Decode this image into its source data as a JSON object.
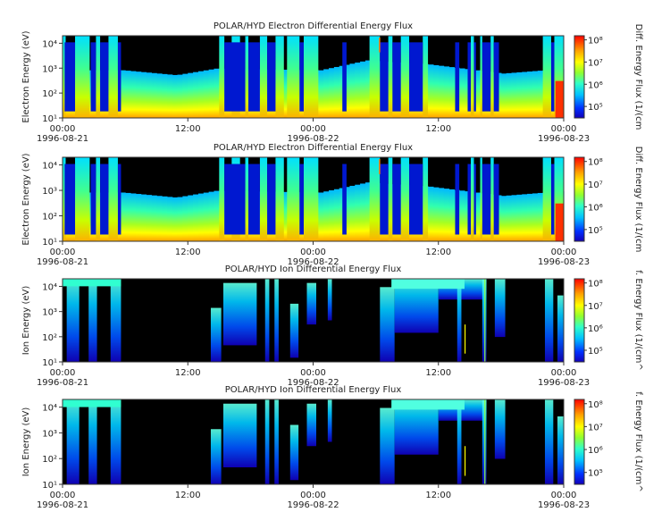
{
  "chart_data": [
    {
      "type": "heatmap",
      "title": "POLAR/HYD  Electron Differential Energy Flux",
      "ylabel": "Electron Energy (eV)",
      "colorbar_label": "Diff. Energy Flux (1/(cm",
      "y_scale": "log",
      "y_ticks": [
        "10¹",
        "10²",
        "10³",
        "10⁴"
      ],
      "y_range_ev": [
        10,
        20000
      ],
      "x_range": [
        "1996-08-21 00:00",
        "1996-08-23 00:00"
      ],
      "x_ticks": [
        "00:00",
        "12:00",
        "00:00",
        "12:00",
        "00:00"
      ],
      "x_dates": [
        "1996-08-21",
        "1996-08-22",
        "1996-08-23"
      ],
      "colorbar_ticks": [
        "10⁵",
        "10⁶",
        "10⁷",
        "10⁸"
      ],
      "colorbar_scale": "log"
    },
    {
      "type": "heatmap",
      "title": "POLAR/HYD  Electron Differential Energy Flux",
      "ylabel": "Electron Energy (eV)",
      "colorbar_label": "Diff. Energy Flux (1/(cm",
      "y_scale": "log",
      "y_ticks": [
        "10¹",
        "10²",
        "10³",
        "10⁴"
      ],
      "y_range_ev": [
        10,
        20000
      ],
      "x_range": [
        "1996-08-21 00:00",
        "1996-08-23 00:00"
      ],
      "x_ticks": [
        "00:00",
        "12:00",
        "00:00",
        "12:00",
        "00:00"
      ],
      "x_dates": [
        "1996-08-21",
        "1996-08-22",
        "1996-08-23"
      ],
      "colorbar_ticks": [
        "10⁵",
        "10⁶",
        "10⁷",
        "10⁸"
      ],
      "colorbar_scale": "log"
    },
    {
      "type": "heatmap",
      "title": "POLAR/HYD  Ion Differential Energy Flux",
      "ylabel": "Ion Energy (eV)",
      "colorbar_label": "f. Energy Flux (1/(cm^",
      "y_scale": "log",
      "y_ticks": [
        "10¹",
        "10²",
        "10³",
        "10⁴"
      ],
      "y_range_ev": [
        10,
        20000
      ],
      "x_range": [
        "1996-08-21 00:00",
        "1996-08-23 00:00"
      ],
      "x_ticks": [
        "00:00",
        "12:00",
        "00:00",
        "12:00",
        "00:00"
      ],
      "x_dates": [
        "1996-08-21",
        "1996-08-22",
        "1996-08-23"
      ],
      "colorbar_ticks": [
        "10⁵",
        "10⁶",
        "10⁷",
        "10⁸"
      ],
      "colorbar_scale": "log"
    },
    {
      "type": "heatmap",
      "title": "POLAR/HYD  Ion Differential Energy Flux",
      "ylabel": "Ion Energy (eV)",
      "colorbar_label": "f. Energy Flux (1/(cm^",
      "y_scale": "log",
      "y_ticks": [
        "10¹",
        "10²",
        "10³",
        "10⁴"
      ],
      "y_range_ev": [
        10,
        20000
      ],
      "x_range": [
        "1996-08-21 00:00",
        "1996-08-23 00:00"
      ],
      "x_ticks": [
        "00:00",
        "12:00",
        "00:00",
        "12:00",
        "00:00"
      ],
      "x_dates": [
        "1996-08-21",
        "1996-08-22",
        "1996-08-23"
      ],
      "colorbar_ticks": [
        "10⁵",
        "10⁶",
        "10⁷",
        "10⁸"
      ],
      "colorbar_scale": "log"
    }
  ],
  "colors": {
    "background_no_data": "#000000",
    "colormap": [
      "#1a00c8",
      "#0022ff",
      "#00b4ff",
      "#28ffd0",
      "#7dff3a",
      "#ffff00",
      "#ffb000",
      "#ff2a00",
      "#ff0000"
    ]
  }
}
